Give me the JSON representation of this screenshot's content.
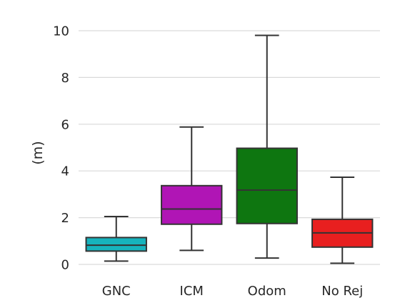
{
  "chart_data": {
    "type": "box",
    "title": "",
    "xlabel": "",
    "ylabel": "(m)",
    "ylim": [
      0,
      10
    ],
    "yticks": [
      0,
      2,
      4,
      6,
      8,
      10
    ],
    "grid": "horizontal",
    "categories": [
      "GNC",
      "ICM",
      "Odom",
      "No Rej"
    ],
    "boxes": [
      {
        "category": "GNC",
        "min": 0.14,
        "q1": 0.57,
        "median": 0.82,
        "q3": 1.15,
        "max": 2.05,
        "color": "#17b3bd"
      },
      {
        "category": "ICM",
        "min": 0.6,
        "q1": 1.72,
        "median": 2.37,
        "q3": 3.37,
        "max": 5.88,
        "color": "#b015b5"
      },
      {
        "category": "Odom",
        "min": 0.27,
        "q1": 1.75,
        "median": 3.18,
        "q3": 4.97,
        "max": 9.8,
        "color": "#0e7610"
      },
      {
        "category": "No Rej",
        "min": 0.05,
        "q1": 0.74,
        "median": 1.35,
        "q3": 1.93,
        "max": 3.73,
        "color": "#e81f1f"
      }
    ]
  }
}
